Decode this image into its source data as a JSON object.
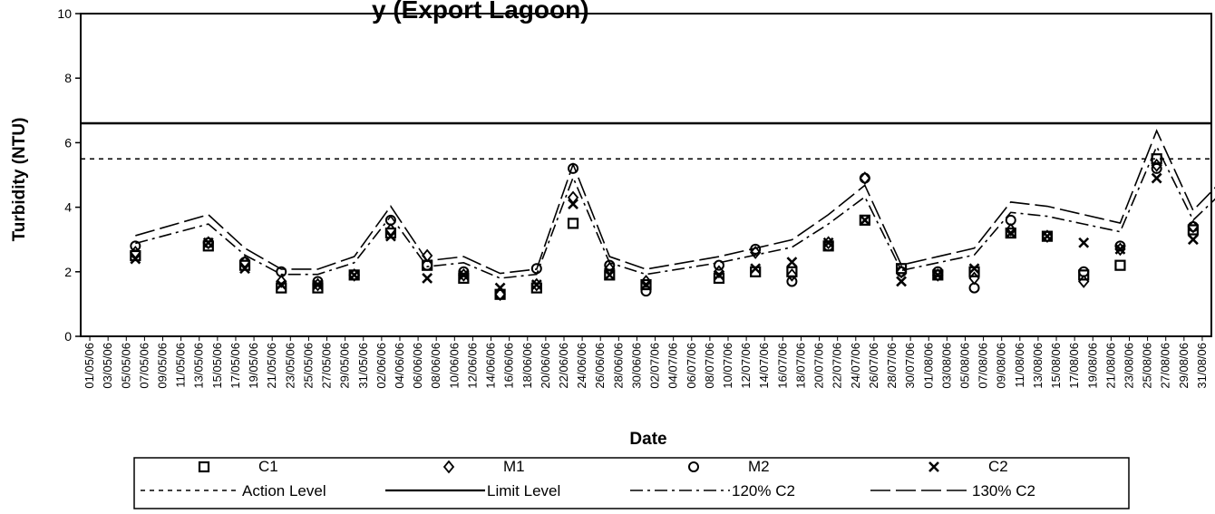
{
  "chart_data": {
    "type": "scatter",
    "title_fragment": "y (Export Lagoon)",
    "xlabel": "Date",
    "ylabel": "Turbidity (NTU)",
    "ylim": [
      0,
      10
    ],
    "yticks": [
      "0",
      "2",
      "4",
      "6",
      "8",
      "10"
    ],
    "grid": false,
    "legend_position": "bottom",
    "x": [
      "01/05/06",
      "03/05/06",
      "05/05/06",
      "07/05/06",
      "09/05/06",
      "11/05/06",
      "13/05/06",
      "15/05/06",
      "17/05/06",
      "19/05/06",
      "21/05/06",
      "23/05/06",
      "25/05/06",
      "27/05/06",
      "29/05/06",
      "31/05/06",
      "02/06/06",
      "04/06/06",
      "06/06/06",
      "08/06/06",
      "10/06/06",
      "12/06/06",
      "14/06/06",
      "16/06/06",
      "18/06/06",
      "20/06/06",
      "22/06/06",
      "24/06/06",
      "26/06/06",
      "28/06/06",
      "30/06/06",
      "02/07/06",
      "04/07/06",
      "06/07/06",
      "08/07/06",
      "10/07/06",
      "12/07/06",
      "14/07/06",
      "16/07/06",
      "18/07/06",
      "20/07/06",
      "22/07/06",
      "24/07/06",
      "26/07/06",
      "28/07/06",
      "30/07/06",
      "01/08/06",
      "03/08/06",
      "05/08/06",
      "07/08/06",
      "09/08/06",
      "11/08/06",
      "13/08/06",
      "15/08/06",
      "17/08/06",
      "19/08/06",
      "21/08/06",
      "23/08/06",
      "25/08/06",
      "27/08/06",
      "29/08/06",
      "31/08/06"
    ],
    "reference_lines": [
      {
        "name": "Action Level",
        "value": 5.5
      },
      {
        "name": "Limit Level",
        "value": 6.6
      }
    ],
    "series": [
      {
        "name": "C1",
        "points": [
          [
            1,
            2.5
          ],
          [
            3,
            2.8
          ],
          [
            4,
            2.2
          ],
          [
            5,
            1.5
          ],
          [
            6,
            1.5
          ],
          [
            7,
            1.9
          ],
          [
            8,
            3.2
          ],
          [
            9,
            2.2
          ],
          [
            10,
            1.8
          ],
          [
            11,
            1.3
          ],
          [
            12,
            1.5
          ],
          [
            13,
            3.5
          ],
          [
            14,
            1.9
          ],
          [
            15,
            1.6
          ],
          [
            17,
            1.8
          ],
          [
            18,
            2.0
          ],
          [
            19,
            2.0
          ],
          [
            20,
            2.8
          ],
          [
            21,
            3.6
          ],
          [
            22,
            2.1
          ],
          [
            23,
            1.9
          ],
          [
            24,
            2.0
          ],
          [
            25,
            3.2
          ],
          [
            26,
            3.1
          ],
          [
            27,
            1.9
          ],
          [
            28,
            2.2
          ],
          [
            29,
            5.5
          ],
          [
            30,
            3.3
          ],
          [
            31,
            4.0
          ],
          [
            32,
            3.4
          ],
          [
            33,
            2.6
          ],
          [
            34,
            2.0
          ],
          [
            35,
            1.4
          ],
          [
            36,
            4.2
          ],
          [
            37,
            1.3
          ],
          [
            41,
            2.9
          ],
          [
            42,
            2.6
          ],
          [
            43,
            3.0
          ],
          [
            44,
            2.3
          ],
          [
            45,
            3.0
          ],
          [
            46,
            2.9
          ],
          [
            47,
            2.3
          ],
          [
            48,
            3.5
          ],
          [
            49,
            2.1
          ],
          [
            50,
            3.6
          ],
          [
            51,
            3.5
          ]
        ]
      },
      {
        "name": "M1",
        "points": [
          [
            1,
            2.6
          ],
          [
            3,
            2.9
          ],
          [
            4,
            2.3
          ],
          [
            5,
            1.7
          ],
          [
            6,
            1.6
          ],
          [
            7,
            1.9
          ],
          [
            8,
            3.3
          ],
          [
            9,
            2.5
          ],
          [
            10,
            1.9
          ],
          [
            11,
            1.3
          ],
          [
            12,
            1.6
          ],
          [
            13,
            4.3
          ],
          [
            14,
            2.1
          ],
          [
            15,
            1.7
          ],
          [
            17,
            2.0
          ],
          [
            18,
            2.6
          ],
          [
            19,
            1.9
          ],
          [
            20,
            2.9
          ],
          [
            21,
            4.9
          ],
          [
            22,
            2.0
          ],
          [
            23,
            1.9
          ],
          [
            24,
            1.8
          ],
          [
            25,
            3.3
          ],
          [
            26,
            3.1
          ],
          [
            27,
            1.7
          ],
          [
            28,
            2.7
          ],
          [
            29,
            5.3
          ],
          [
            30,
            3.4
          ],
          [
            31,
            2.9
          ],
          [
            32,
            3.9
          ],
          [
            33,
            2.7
          ],
          [
            34,
            1.9
          ],
          [
            35,
            1.8
          ],
          [
            36,
            4.7
          ],
          [
            37,
            1.4
          ],
          [
            41,
            3.0
          ],
          [
            42,
            2.7
          ],
          [
            43,
            3.2
          ],
          [
            44,
            2.4
          ],
          [
            45,
            3.5
          ],
          [
            46,
            3.0
          ],
          [
            47,
            1.6
          ],
          [
            48,
            4.5
          ],
          [
            49,
            2.5
          ],
          [
            50,
            3.7
          ],
          [
            51,
            3.8
          ]
        ]
      },
      {
        "name": "M2",
        "points": [
          [
            1,
            2.8
          ],
          [
            3,
            2.9
          ],
          [
            4,
            2.3
          ],
          [
            5,
            2.0
          ],
          [
            6,
            1.7
          ],
          [
            7,
            1.9
          ],
          [
            8,
            3.6
          ],
          [
            9,
            2.2
          ],
          [
            10,
            2.0
          ],
          [
            11,
            1.3
          ],
          [
            12,
            2.1
          ],
          [
            13,
            5.2
          ],
          [
            14,
            2.2
          ],
          [
            15,
            1.4
          ],
          [
            17,
            2.2
          ],
          [
            18,
            2.7
          ],
          [
            19,
            1.7
          ],
          [
            20,
            2.8
          ],
          [
            21,
            4.9
          ],
          [
            22,
            2.0
          ],
          [
            23,
            2.0
          ],
          [
            24,
            1.5
          ],
          [
            25,
            3.6
          ],
          [
            26,
            3.1
          ],
          [
            27,
            2.0
          ],
          [
            28,
            2.8
          ],
          [
            29,
            5.2
          ],
          [
            30,
            3.4
          ],
          [
            31,
            3.1
          ],
          [
            32,
            4.2
          ],
          [
            33,
            2.6
          ],
          [
            34,
            1.8
          ],
          [
            35,
            1.9
          ],
          [
            36,
            4.6
          ],
          [
            37,
            1.6
          ],
          [
            41,
            3.1
          ],
          [
            42,
            3.3
          ],
          [
            43,
            3.3
          ],
          [
            44,
            2.7
          ],
          [
            45,
            4.7
          ],
          [
            46,
            3.4
          ],
          [
            47,
            1.9
          ],
          [
            48,
            5.0
          ],
          [
            49,
            2.5
          ],
          [
            50,
            3.7
          ],
          [
            51,
            3.9
          ]
        ]
      },
      {
        "name": "C2",
        "points": [
          [
            1,
            2.4
          ],
          [
            3,
            2.9
          ],
          [
            4,
            2.1
          ],
          [
            5,
            1.6
          ],
          [
            6,
            1.6
          ],
          [
            7,
            1.9
          ],
          [
            8,
            3.1
          ],
          [
            9,
            1.8
          ],
          [
            10,
            1.9
          ],
          [
            11,
            1.5
          ],
          [
            12,
            1.6
          ],
          [
            13,
            4.1
          ],
          [
            14,
            1.9
          ],
          [
            15,
            1.6
          ],
          [
            17,
            1.9
          ],
          [
            18,
            2.1
          ],
          [
            19,
            2.3
          ],
          [
            20,
            2.9
          ],
          [
            21,
            3.6
          ],
          [
            22,
            1.7
          ],
          [
            23,
            1.9
          ],
          [
            24,
            2.1
          ],
          [
            25,
            3.2
          ],
          [
            26,
            3.1
          ],
          [
            27,
            2.9
          ],
          [
            28,
            2.7
          ],
          [
            29,
            4.9
          ],
          [
            30,
            3.0
          ],
          [
            31,
            3.9
          ],
          [
            32,
            3.7
          ],
          [
            33,
            2.6
          ],
          [
            34,
            2.0
          ],
          [
            35,
            1.5
          ],
          [
            36,
            4.1
          ],
          [
            37,
            1.4
          ],
          [
            41,
            3.0
          ],
          [
            42,
            2.5
          ],
          [
            43,
            2.8
          ],
          [
            44,
            2.4
          ],
          [
            45,
            3.4
          ],
          [
            46,
            2.9
          ],
          [
            47,
            1.2
          ],
          [
            48,
            3.2
          ],
          [
            49,
            2.7
          ],
          [
            50,
            3.6
          ],
          [
            51,
            3.0
          ]
        ]
      }
    ],
    "ratio_lines": [
      {
        "name": "120% C2",
        "factor": 1.2
      },
      {
        "name": "130% C2",
        "factor": 1.3
      }
    ],
    "legend": [
      {
        "label": "C1",
        "kind": "marker-square"
      },
      {
        "label": "M1",
        "kind": "marker-diamond"
      },
      {
        "label": "M2",
        "kind": "marker-circle"
      },
      {
        "label": "C2",
        "kind": "marker-cross"
      },
      {
        "label": "Action Level",
        "kind": "line-dotted"
      },
      {
        "label": "Limit Level",
        "kind": "line-solid"
      },
      {
        "label": "120% C2",
        "kind": "line-dashdot"
      },
      {
        "label": "130% C2",
        "kind": "line-longdash"
      }
    ]
  }
}
